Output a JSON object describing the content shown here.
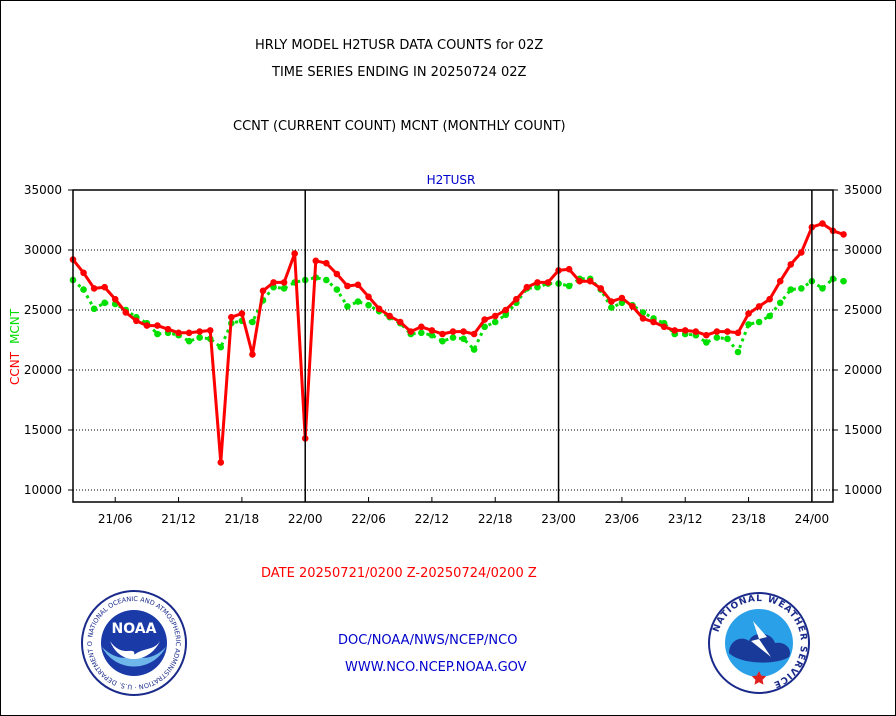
{
  "header": {
    "line1": "HRLY MODEL H2TUSR DATA COUNTS for 02Z",
    "line2": "TIME SERIES ENDING IN 20250724 02Z",
    "line3": "CCNT (CURRENT COUNT) MCNT (MONTHLY COUNT)"
  },
  "footer": {
    "date_range": "DATE 20250721/0200 Z-20250724/0200 Z",
    "org_path": "DOC/NOAA/NWS/NCEP/NCO",
    "website": "WWW.NCO.NCEP.NOAA.GOV"
  },
  "logos": {
    "left": "noaa-logo",
    "left_text": "NOAA",
    "left_ring": "NATIONAL OCEANIC AND ATMOSPHERIC ADMINISTRATION · U.S. DEPARTMENT OF COMMERCE",
    "right": "national-weather-service-logo",
    "right_ring": "NATIONAL WEATHER SERVICE"
  },
  "colors": {
    "ccnt": "#ff0000",
    "mcnt": "#00e000",
    "text_blue": "#0000cc",
    "date_red": "#ff0000"
  },
  "chart_data": {
    "type": "line",
    "title": "H2TUSR",
    "ylabel_left": [
      "CCNT",
      "MCNT"
    ],
    "ylim": [
      9000,
      35000
    ],
    "yticks": [
      10000,
      15000,
      20000,
      25000,
      30000,
      35000
    ],
    "ytick_labels": [
      "10000",
      "15000",
      "20000",
      "25000",
      "30000",
      "35000"
    ],
    "x_hours_range": [
      2,
      74
    ],
    "xticks": [
      6,
      12,
      18,
      24,
      30,
      36,
      42,
      48,
      54,
      60,
      66,
      72
    ],
    "xtick_labels": [
      "21/06",
      "21/12",
      "21/18",
      "22/00",
      "22/06",
      "22/12",
      "22/18",
      "23/00",
      "23/06",
      "23/12",
      "23/18",
      "24/00"
    ],
    "day_boundaries": [
      24,
      48,
      72
    ],
    "grid": "horizontal-dotted",
    "series": [
      {
        "name": "CCNT",
        "color": "#ff0000",
        "values": [
          29200,
          28100,
          26800,
          26900,
          25900,
          24800,
          24100,
          23700,
          23700,
          23400,
          23100,
          23100,
          23200,
          23300,
          12300,
          24400,
          24700,
          21300,
          26600,
          27300,
          27300,
          29700,
          14300,
          29100,
          28900,
          28000,
          27000,
          27100,
          26100,
          25100,
          24500,
          24000,
          23200,
          23600,
          23300,
          23000,
          23200,
          23200,
          23000,
          24200,
          24500,
          25000,
          25900,
          26900,
          27300,
          27300,
          28300,
          28400,
          27400,
          27400,
          26800,
          25700,
          26000,
          25300,
          24300,
          24000,
          23600,
          23300,
          23300,
          23200,
          22900,
          23200,
          23200,
          23100,
          24700,
          25300,
          25900,
          27400,
          28800,
          29800,
          31900,
          32200,
          31600,
          31300
        ]
      },
      {
        "name": "MCNT",
        "color": "#00e000",
        "values": [
          27500,
          26700,
          25100,
          25600,
          25500,
          25000,
          24400,
          23900,
          23000,
          23100,
          22900,
          22400,
          22700,
          22600,
          21900,
          23900,
          24100,
          24000,
          25800,
          26900,
          26800,
          27300,
          27500,
          27700,
          27500,
          26700,
          25300,
          25700,
          25400,
          24900,
          24400,
          23900,
          23000,
          23100,
          22900,
          22400,
          22700,
          22600,
          21700,
          23600,
          24000,
          24600,
          25600,
          26800,
          26900,
          27200,
          27200,
          27000,
          27600,
          27600,
          26700,
          25200,
          25600,
          25400,
          24800,
          24300,
          23900,
          23000,
          23000,
          22900,
          22300,
          22700,
          22600,
          21500,
          23800,
          24000,
          24500,
          25600,
          26700,
          26800,
          27400,
          26800,
          27600,
          27400
        ]
      }
    ]
  }
}
